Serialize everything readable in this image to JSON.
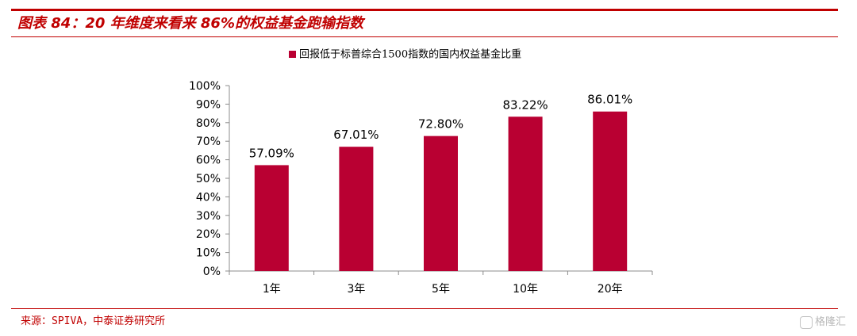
{
  "header": {
    "title": "图表 84：20 年维度来看来 86%的权益基金跑输指数"
  },
  "footer": {
    "source": "来源：SPIVA，中泰证券研究所",
    "watermark": "格隆汇"
  },
  "colors": {
    "accent": "#c00000",
    "bar": "#b90032",
    "text": "#000000",
    "axis": "#8c8c8c"
  },
  "chart_data": {
    "type": "bar",
    "categories": [
      "1年",
      "3年",
      "5年",
      "10年",
      "20年"
    ],
    "series": [
      {
        "name": "回报低于标普综合1500指数的国内权益基金比重",
        "values": [
          57.09,
          67.01,
          72.8,
          83.22,
          86.01
        ]
      }
    ],
    "data_labels": [
      "57.09%",
      "67.01%",
      "72.80%",
      "83.22%",
      "86.01%"
    ],
    "y_ticks": [
      "0%",
      "10%",
      "20%",
      "30%",
      "40%",
      "50%",
      "60%",
      "70%",
      "80%",
      "90%",
      "100%"
    ],
    "ylim": [
      0,
      100
    ],
    "grid": false,
    "legend": "top-center"
  }
}
